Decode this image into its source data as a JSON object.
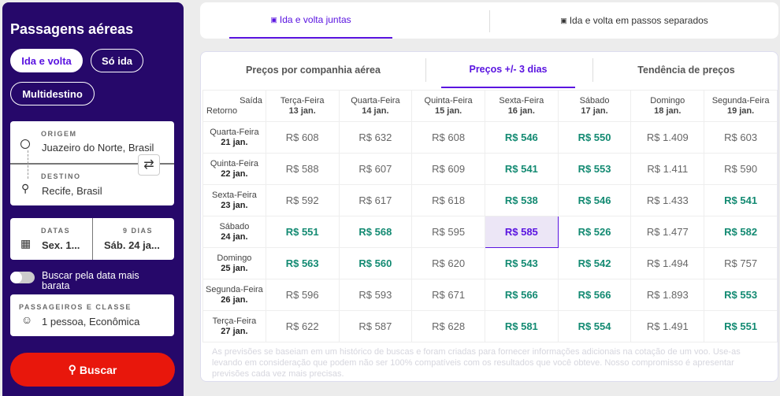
{
  "sidebar": {
    "title": "Passagens aéreas",
    "trip_types": [
      "Ida e volta",
      "Só ida",
      "Multidestino"
    ],
    "origin_label": "ORIGEM",
    "origin": "Juazeiro do Norte, Brasil",
    "destination_label": "DESTINO",
    "destination": "Recife, Brasil",
    "dates_label": "DATAS",
    "depart": "Sex. 1...",
    "days_label": "9 DIAS",
    "return": "Sáb. 24 ja...",
    "cheapest_toggle": "Buscar pela data mais barata",
    "cheapest_toggle_on": false,
    "passengers_label": "PASSAGEIROS E CLASSE",
    "passengers": "1 pessoa, Econômica",
    "search_label": "Buscar"
  },
  "top_tabs": [
    "Ida e volta juntas",
    "Ida e volta em passos separados"
  ],
  "sub_tabs": [
    "Preços por companhia aérea",
    "Preços +/- 3 dias",
    "Tendência de preços"
  ],
  "colors": {
    "accent": "#5a14e0",
    "sidebar": "#26086a",
    "cheap": "#138a72",
    "search": "#e8170c"
  },
  "matrix": {
    "corner_top": "Saída",
    "corner_bottom": "Retorno",
    "columns": [
      {
        "day": "Terça-Feira",
        "date": "13 jan."
      },
      {
        "day": "Quarta-Feira",
        "date": "14 jan."
      },
      {
        "day": "Quinta-Feira",
        "date": "15 jan."
      },
      {
        "day": "Sexta-Feira",
        "date": "16 jan."
      },
      {
        "day": "Sábado",
        "date": "17 jan."
      },
      {
        "day": "Domingo",
        "date": "18 jan."
      },
      {
        "day": "Segunda-Feira",
        "date": "19 jan."
      }
    ],
    "rows": [
      {
        "day": "Quarta-Feira",
        "date": "21 jan.",
        "prices": [
          "R$ 608",
          "R$ 632",
          "R$ 608",
          "R$ 546",
          "R$ 550",
          "R$ 1.409",
          "R$ 603"
        ],
        "cheap": [
          0,
          0,
          0,
          1,
          1,
          0,
          0
        ]
      },
      {
        "day": "Quinta-Feira",
        "date": "22 jan.",
        "prices": [
          "R$ 588",
          "R$ 607",
          "R$ 609",
          "R$ 541",
          "R$ 553",
          "R$ 1.411",
          "R$ 590"
        ],
        "cheap": [
          0,
          0,
          0,
          1,
          1,
          0,
          0
        ]
      },
      {
        "day": "Sexta-Feira",
        "date": "23 jan.",
        "prices": [
          "R$ 592",
          "R$ 617",
          "R$ 618",
          "R$ 538",
          "R$ 546",
          "R$ 1.433",
          "R$ 541"
        ],
        "cheap": [
          0,
          0,
          0,
          1,
          1,
          0,
          1
        ]
      },
      {
        "day": "Sábado",
        "date": "24 jan.",
        "prices": [
          "R$ 551",
          "R$ 568",
          "R$ 595",
          "R$ 585",
          "R$ 526",
          "R$ 1.477",
          "R$ 582"
        ],
        "cheap": [
          1,
          1,
          0,
          2,
          1,
          0,
          1
        ]
      },
      {
        "day": "Domingo",
        "date": "25 jan.",
        "prices": [
          "R$ 563",
          "R$ 560",
          "R$ 620",
          "R$ 543",
          "R$ 542",
          "R$ 1.494",
          "R$ 757"
        ],
        "cheap": [
          1,
          1,
          0,
          1,
          1,
          0,
          0
        ]
      },
      {
        "day": "Segunda-Feira",
        "date": "26 jan.",
        "prices": [
          "R$ 596",
          "R$ 593",
          "R$ 671",
          "R$ 566",
          "R$ 566",
          "R$ 1.893",
          "R$ 553"
        ],
        "cheap": [
          0,
          0,
          0,
          1,
          1,
          0,
          1
        ]
      },
      {
        "day": "Terça-Feira",
        "date": "27 jan.",
        "prices": [
          "R$ 622",
          "R$ 587",
          "R$ 628",
          "R$ 581",
          "R$ 554",
          "R$ 1.491",
          "R$ 551"
        ],
        "cheap": [
          0,
          0,
          0,
          1,
          1,
          0,
          1
        ]
      }
    ]
  },
  "note": "As previsões se baseiam em um histórico de buscas e foram criadas para fornecer informações adicionais na cotação de um voo. Use-as levando em consideração que podem não ser 100% compatíveis com os resultados que você obteve. Nosso compromisso é apresentar previsões cada vez mais precisas."
}
